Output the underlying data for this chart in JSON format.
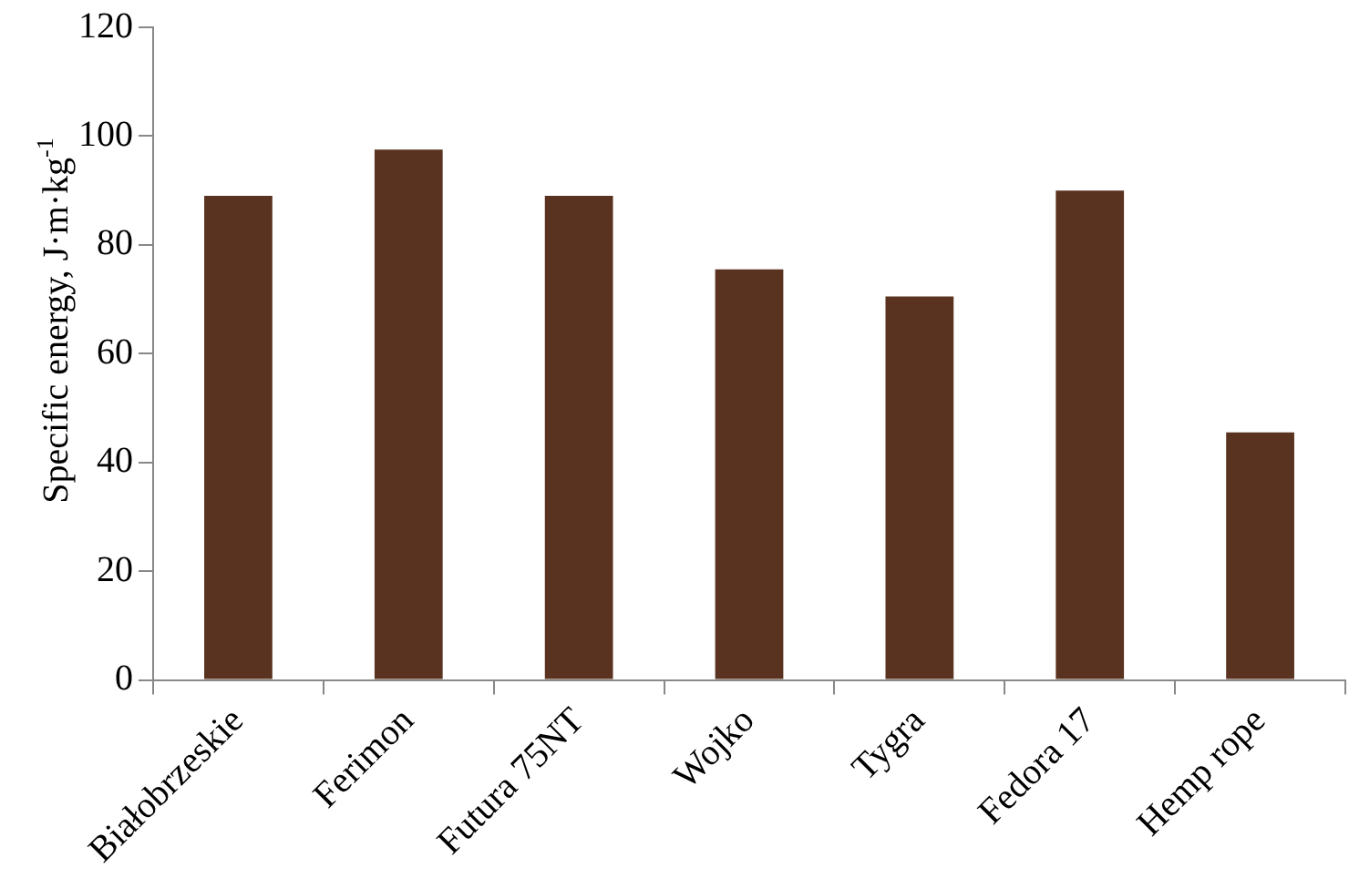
{
  "chart_data": {
    "type": "bar",
    "ylabel": "Specific energy, J·m·kg$^{-1}$",
    "categories": [
      "Białobrzeskie",
      "Ferimon",
      "Futura 75NT",
      "Wojko",
      "Tygra",
      "Fedora 17",
      "Hemp rope"
    ],
    "values": [
      89,
      97.5,
      89,
      75.5,
      70.5,
      90,
      45.5
    ],
    "color": "#5a3220",
    "ylim": [
      0,
      120
    ],
    "yticks": [
      0,
      20,
      40,
      60,
      80,
      100,
      120
    ],
    "grid": false,
    "legend": false
  }
}
